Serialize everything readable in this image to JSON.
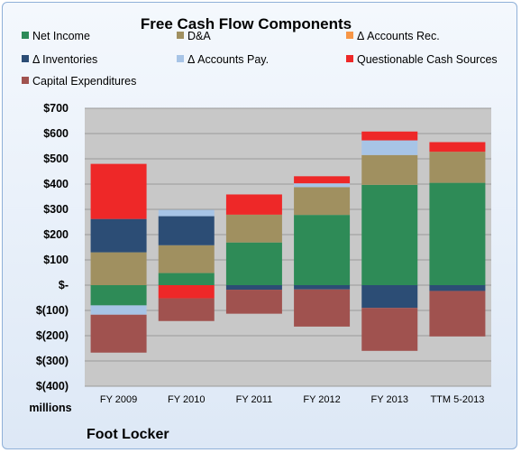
{
  "chart_data": {
    "type": "bar",
    "stacked": true,
    "title": "Free Cash Flow Components",
    "units_label": "millions",
    "company_label": "Foot Locker",
    "categories": [
      "FY 2009",
      "FY 2010",
      "FY 2011",
      "FY 2012",
      "FY 2013",
      "TTM 5-2013"
    ],
    "ylim": [
      -400,
      700
    ],
    "yticks": [
      700,
      600,
      500,
      400,
      300,
      200,
      100,
      0,
      -100,
      -200,
      -300,
      -400
    ],
    "ytick_labels": [
      "$700",
      "$600",
      "$500",
      "$400",
      "$300",
      "$200",
      "$100",
      "$-",
      "$(100)",
      "$(200)",
      "$(300)",
      "$(400)"
    ],
    "grid": true,
    "legend_position": "top",
    "series": [
      {
        "name": "Net Income",
        "color": "#2e8b57",
        "values": [
          -80,
          48,
          169,
          278,
          397,
          405
        ]
      },
      {
        "name": "D&A",
        "color": "#a09060",
        "values": [
          130,
          110,
          110,
          110,
          118,
          123
        ]
      },
      {
        "name": "Δ Accounts Rec.",
        "color": "#f79646",
        "values": [
          0,
          0,
          0,
          0,
          0,
          0
        ]
      },
      {
        "name": "Δ Inventories",
        "color": "#2c4d75",
        "values": [
          132,
          115,
          -18,
          -17,
          -90,
          -23
        ]
      },
      {
        "name": "Δ Accounts Pay.",
        "color": "#a7c4e6",
        "values": [
          -37,
          25,
          0,
          15,
          58,
          0
        ]
      },
      {
        "name": "Questionable Cash Sources",
        "color": "#ee2828",
        "values": [
          218,
          -52,
          80,
          28,
          35,
          38
        ]
      },
      {
        "name": "Capital Expenditures",
        "color": "#a0524f",
        "values": [
          -150,
          -90,
          -95,
          -147,
          -170,
          -180
        ]
      }
    ]
  }
}
